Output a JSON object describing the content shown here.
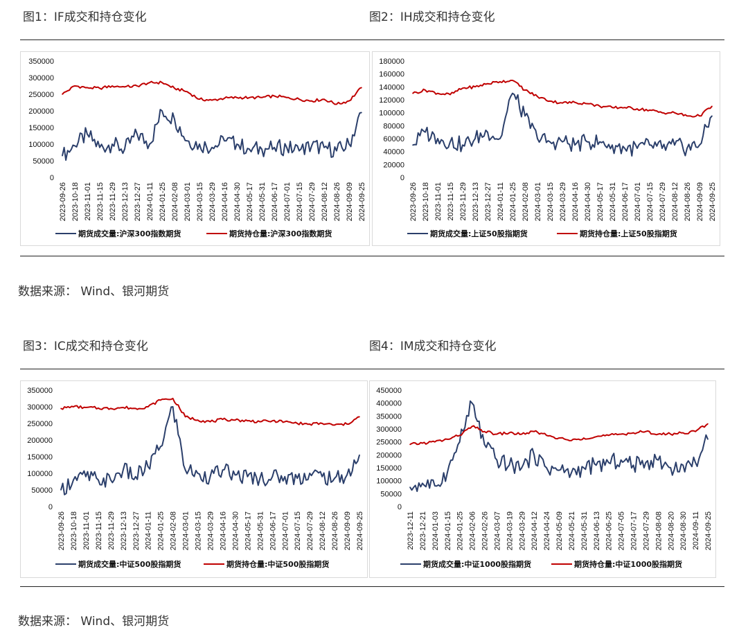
{
  "section1": {
    "fig1_title": "图1：IF成交和持仓变化",
    "fig2_title": "图2：IH成交和持仓变化",
    "source": "数据来源：  Wind、银河期货"
  },
  "section2": {
    "fig3_title": "图3：IC成交和持仓变化",
    "fig4_title": "图4：IM成交和持仓变化",
    "source": "数据来源：  Wind、银河期货"
  },
  "colors": {
    "volume": "#2b3f6b",
    "open_interest": "#c00000"
  },
  "chart_data": [
    {
      "type": "line",
      "title": "图1：IF成交和持仓变化",
      "x": [
        "2023-09-26",
        "2023-10-18",
        "2023-11-01",
        "2023-11-15",
        "2023-11-29",
        "2023-12-13",
        "2023-12-27",
        "2024-01-11",
        "2024-01-25",
        "2024-02-08",
        "2024-03-01",
        "2024-03-15",
        "2024-03-29",
        "2024-04-16",
        "2024-04-30",
        "2024-05-17",
        "2024-05-31",
        "2024-06-17",
        "2024-07-01",
        "2024-07-15",
        "2024-07-29",
        "2024-08-12",
        "2024-08-26",
        "2024-09-09",
        "2024-09-25"
      ],
      "ylim": [
        0,
        350000
      ],
      "yticks": [
        0,
        50000,
        100000,
        150000,
        200000,
        250000,
        300000,
        350000
      ],
      "series": [
        {
          "name": "期货成交量:沪深300指数期货",
          "color": "#2b3f6b",
          "values": [
            65000,
            95000,
            130000,
            90000,
            100000,
            85000,
            130000,
            100000,
            200000,
            175000,
            110000,
            100000,
            90000,
            110000,
            100000,
            85000,
            85000,
            90000,
            90000,
            80000,
            95000,
            90000,
            80000,
            100000,
            195000
          ]
        },
        {
          "name": "期货持仓量:沪深300指数期货",
          "color": "#c00000",
          "values": [
            250000,
            275000,
            270000,
            268000,
            275000,
            272000,
            275000,
            285000,
            285000,
            268000,
            258000,
            235000,
            232000,
            238000,
            240000,
            240000,
            240000,
            245000,
            240000,
            235000,
            230000,
            235000,
            220000,
            230000,
            270000
          ]
        }
      ]
    },
    {
      "type": "line",
      "title": "图2：IH成交和持仓变化",
      "x": [
        "2023-09-26",
        "2023-10-18",
        "2023-11-01",
        "2023-11-15",
        "2023-11-29",
        "2023-12-13",
        "2023-12-27",
        "2024-01-11",
        "2024-01-25",
        "2024-02-08",
        "2024-03-01",
        "2024-03-15",
        "2024-03-29",
        "2024-04-16",
        "2024-04-30",
        "2024-05-17",
        "2024-05-31",
        "2024-06-17",
        "2024-07-01",
        "2024-07-15",
        "2024-07-29",
        "2024-08-12",
        "2024-08-26",
        "2024-09-09",
        "2024-09-25"
      ],
      "ylim": [
        0,
        180000
      ],
      "yticks": [
        0,
        20000,
        40000,
        60000,
        80000,
        100000,
        120000,
        140000,
        160000,
        180000
      ],
      "series": [
        {
          "name": "期货成交量:上证50股指期货",
          "color": "#2b3f6b",
          "values": [
            50000,
            70000,
            60000,
            55000,
            50000,
            60000,
            70000,
            60000,
            130000,
            95000,
            60000,
            55000,
            55000,
            50000,
            55000,
            55000,
            50000,
            45000,
            45000,
            50000,
            45000,
            50000,
            45000,
            50000,
            95000
          ]
        },
        {
          "name": "期货持仓量:上证50股指期货",
          "color": "#c00000",
          "values": [
            130000,
            135000,
            130000,
            128000,
            138000,
            140000,
            145000,
            148000,
            150000,
            135000,
            125000,
            118000,
            115000,
            116000,
            114000,
            110000,
            108000,
            108000,
            106000,
            104000,
            100000,
            100000,
            95000,
            95000,
            110000
          ]
        }
      ]
    },
    {
      "type": "line",
      "title": "图3：IC成交和持仓变化",
      "x": [
        "2023-09-26",
        "2023-10-18",
        "2023-11-01",
        "2023-11-15",
        "2023-11-29",
        "2023-12-13",
        "2023-12-27",
        "2024-01-11",
        "2024-01-25",
        "2024-02-08",
        "2024-03-01",
        "2024-03-15",
        "2024-03-29",
        "2024-04-16",
        "2024-04-30",
        "2024-05-17",
        "2024-05-31",
        "2024-06-17",
        "2024-07-01",
        "2024-07-15",
        "2024-07-29",
        "2024-08-12",
        "2024-08-26",
        "2024-09-09",
        "2024-09-25"
      ],
      "ylim": [
        0,
        350000
      ],
      "yticks": [
        0,
        50000,
        100000,
        150000,
        200000,
        250000,
        300000,
        350000
      ],
      "series": [
        {
          "name": "期货成交量:中证500股指期货",
          "color": "#2b3f6b",
          "values": [
            50000,
            80000,
            90000,
            80000,
            80000,
            110000,
            90000,
            120000,
            180000,
            300000,
            110000,
            100000,
            90000,
            110000,
            95000,
            90000,
            85000,
            90000,
            90000,
            85000,
            100000,
            90000,
            85000,
            95000,
            155000
          ]
        },
        {
          "name": "期货持仓量:中证500股指期货",
          "color": "#c00000",
          "values": [
            295000,
            300000,
            298000,
            296000,
            295000,
            298000,
            295000,
            300000,
            320000,
            325000,
            270000,
            260000,
            255000,
            262000,
            260000,
            258000,
            255000,
            258000,
            255000,
            250000,
            248000,
            250000,
            245000,
            248000,
            270000
          ]
        }
      ]
    },
    {
      "type": "line",
      "title": "图4：IM成交和持仓变化",
      "x": [
        "2023-12-11",
        "2023-12-21",
        "2024-01-03",
        "2024-01-15",
        "2024-01-25",
        "2024-02-06",
        "2024-02-26",
        "2024-03-07",
        "2024-03-19",
        "2024-03-29",
        "2024-04-12",
        "2024-04-24",
        "2024-05-09",
        "2024-05-21",
        "2024-05-31",
        "2024-06-13",
        "2024-06-25",
        "2024-07-05",
        "2024-07-17",
        "2024-07-29",
        "2024-08-08",
        "2024-08-20",
        "2024-08-30",
        "2024-09-11",
        "2024-09-25"
      ],
      "ylim": [
        0,
        450000
      ],
      "yticks": [
        0,
        50000,
        100000,
        150000,
        200000,
        250000,
        300000,
        350000,
        400000,
        450000
      ],
      "series": [
        {
          "name": "期货成交量:中证1000股指期货",
          "color": "#2b3f6b",
          "values": [
            75000,
            90000,
            80000,
            130000,
            250000,
            400000,
            240000,
            180000,
            160000,
            150000,
            200000,
            150000,
            140000,
            130000,
            150000,
            160000,
            170000,
            180000,
            160000,
            170000,
            180000,
            150000,
            160000,
            170000,
            260000
          ]
        },
        {
          "name": "期货持仓量:中证1000股指期货",
          "color": "#c00000",
          "values": [
            240000,
            245000,
            250000,
            260000,
            275000,
            310000,
            290000,
            280000,
            285000,
            280000,
            290000,
            275000,
            265000,
            255000,
            265000,
            270000,
            275000,
            280000,
            285000,
            290000,
            280000,
            280000,
            285000,
            290000,
            320000
          ]
        }
      ]
    }
  ]
}
